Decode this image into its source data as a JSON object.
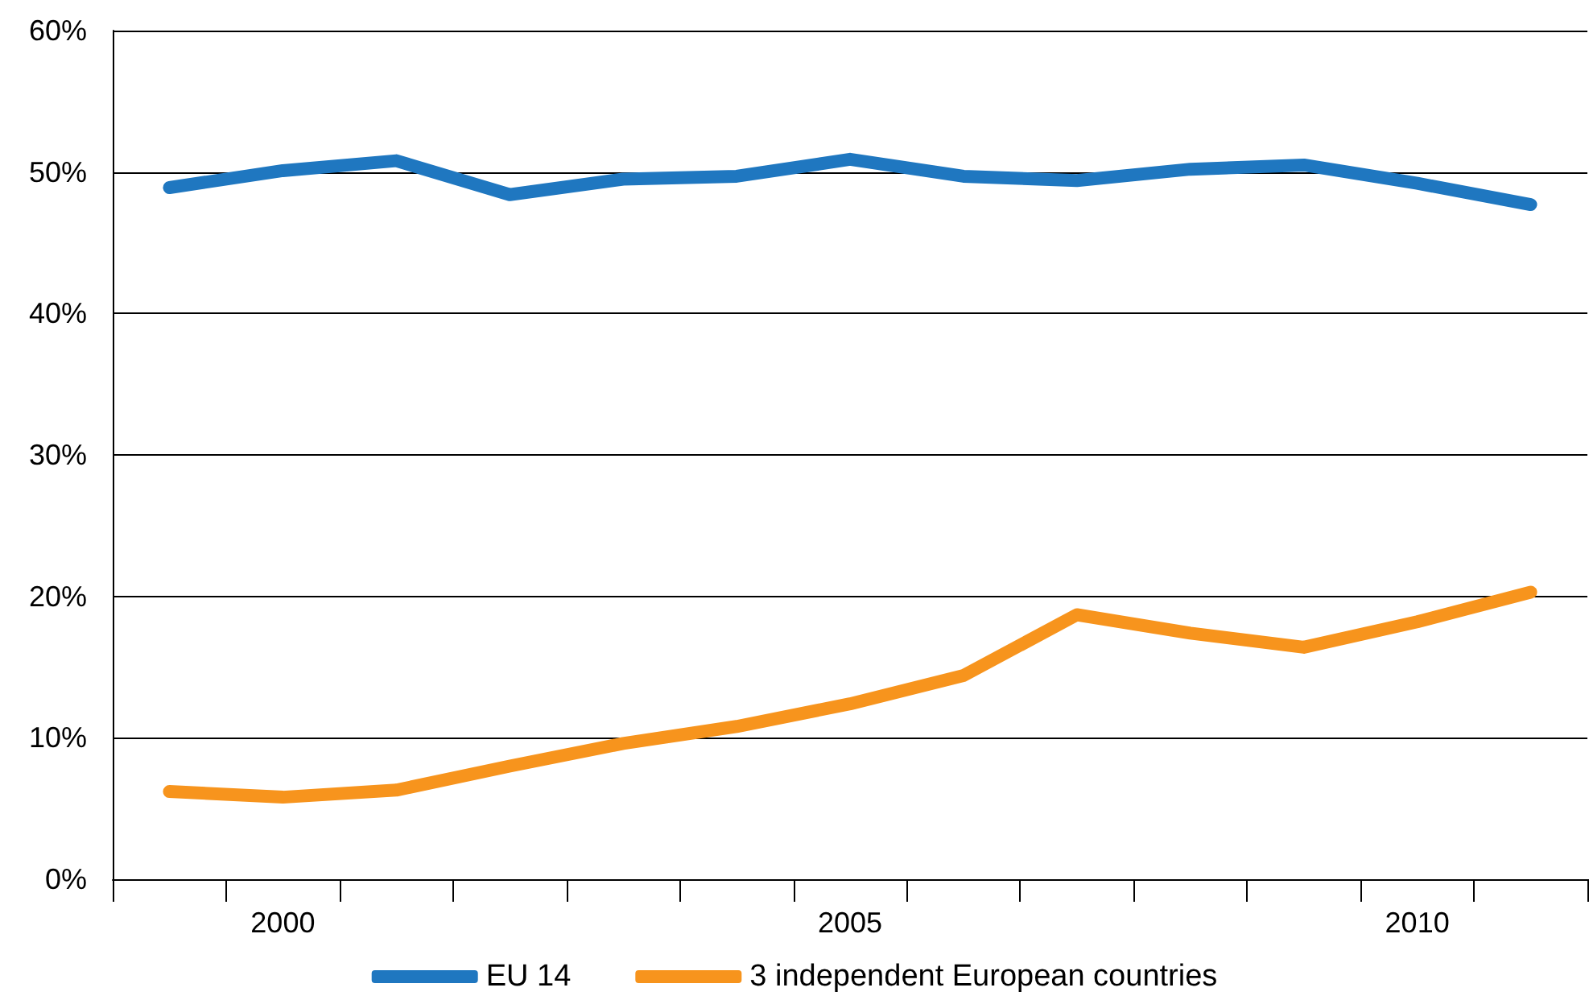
{
  "chart_data": {
    "type": "line",
    "categories": [
      null,
      "2000",
      null,
      null,
      null,
      null,
      "2005",
      null,
      null,
      null,
      null,
      "2010",
      null
    ],
    "series": [
      {
        "name": "EU 14",
        "color": "#1f77c0",
        "values": [
          48.9,
          50.1,
          50.8,
          48.4,
          49.5,
          49.7,
          50.9,
          49.7,
          49.4,
          50.2,
          50.5,
          49.2,
          47.7
        ]
      },
      {
        "name": "3 independent European countries",
        "color": "#f7941d",
        "values": [
          6.2,
          5.8,
          6.3,
          8.0,
          9.6,
          10.8,
          12.4,
          14.4,
          18.7,
          17.4,
          16.4,
          18.2,
          20.3
        ]
      }
    ],
    "ylim": [
      0,
      60
    ],
    "yticks": [
      {
        "value": 0,
        "label": "0%"
      },
      {
        "value": 10,
        "label": "10%"
      },
      {
        "value": 20,
        "label": "20%"
      },
      {
        "value": 30,
        "label": "30%"
      },
      {
        "value": 40,
        "label": "40%"
      },
      {
        "value": 50,
        "label": "50%"
      },
      {
        "value": 60,
        "label": "60%"
      }
    ],
    "grid": "y",
    "legend": "bottom",
    "line_style": "solid"
  }
}
